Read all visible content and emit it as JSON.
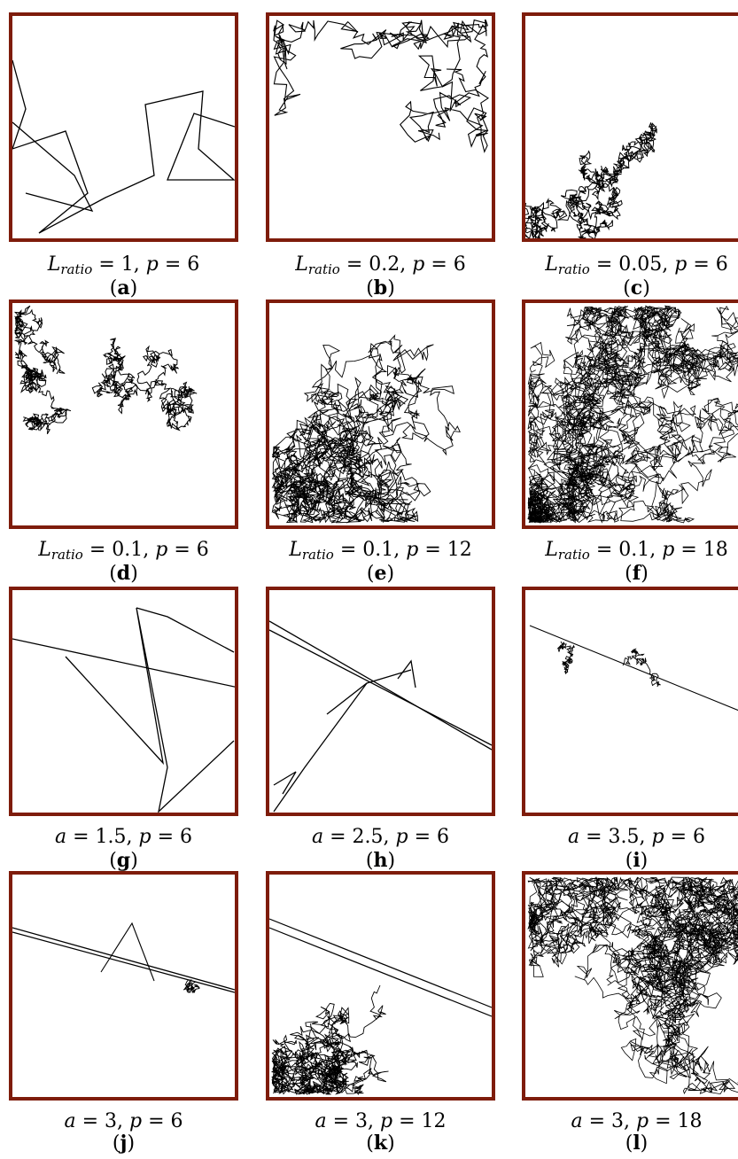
{
  "panels": [
    {
      "id": "a",
      "param": "L_ratio",
      "value": "1",
      "p": "6",
      "letter": "a",
      "style": "sparse"
    },
    {
      "id": "b",
      "param": "L_ratio",
      "value": "0.2",
      "p": "6",
      "letter": "b",
      "style": "medium"
    },
    {
      "id": "c",
      "param": "L_ratio",
      "value": "0.05",
      "p": "6",
      "letter": "c",
      "style": "cluster"
    },
    {
      "id": "d",
      "param": "L_ratio",
      "value": "0.1",
      "p": "6",
      "letter": "d",
      "style": "cluster2"
    },
    {
      "id": "e",
      "param": "L_ratio",
      "value": "0.1",
      "p": "12",
      "letter": "e",
      "style": "dense"
    },
    {
      "id": "f",
      "param": "L_ratio",
      "value": "0.1",
      "p": "18",
      "letter": "f",
      "style": "verydense"
    },
    {
      "id": "g",
      "param": "a",
      "value": "1.5",
      "p": "6",
      "letter": "g",
      "style": "levy-sparse"
    },
    {
      "id": "h",
      "param": "a",
      "value": "2.5",
      "p": "6",
      "letter": "h",
      "style": "levy-line"
    },
    {
      "id": "i",
      "param": "a",
      "value": "3.5",
      "p": "6",
      "letter": "i",
      "style": "levy-thin"
    },
    {
      "id": "j",
      "param": "a",
      "value": "3",
      "p": "6",
      "letter": "j",
      "style": "levy-thin2"
    },
    {
      "id": "k",
      "param": "a",
      "value": "3",
      "p": "12",
      "letter": "k",
      "style": "levy-medium"
    },
    {
      "id": "l",
      "param": "a",
      "value": "3",
      "p": "18",
      "letter": "l",
      "style": "levy-dense"
    }
  ],
  "colors": {
    "frame": "#7e1c0b",
    "line": "#000000"
  }
}
